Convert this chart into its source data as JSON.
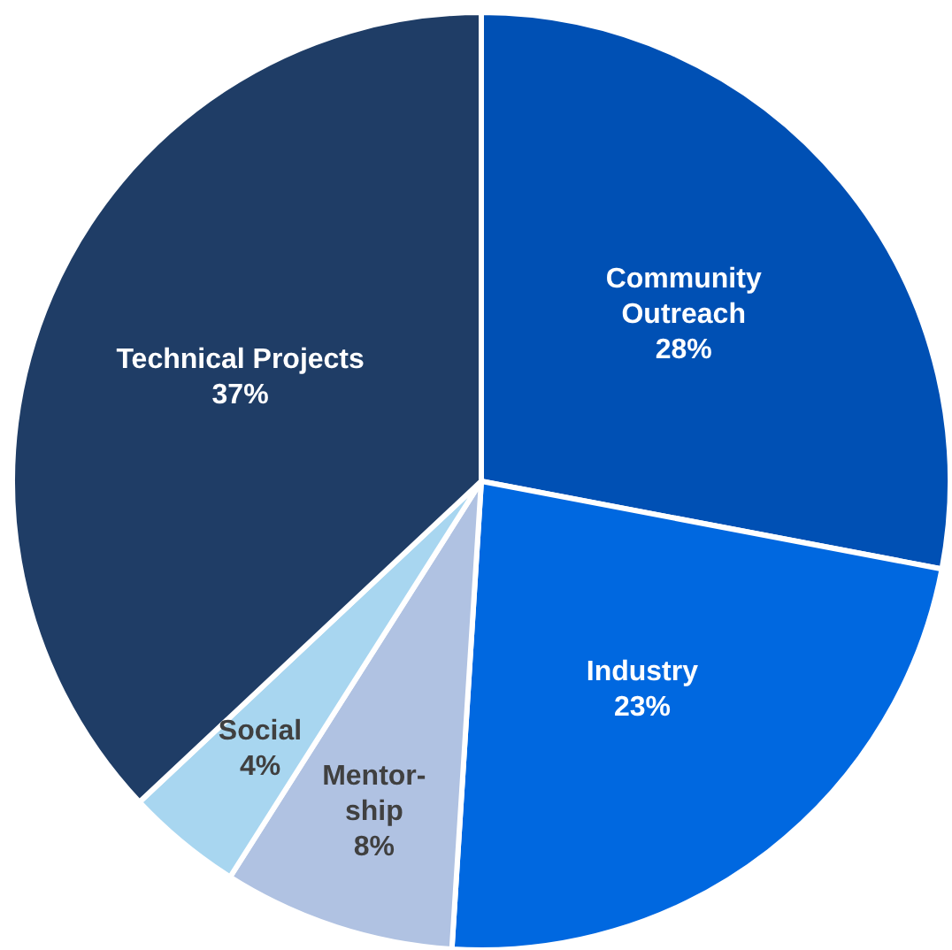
{
  "chart_data": {
    "type": "pie",
    "categories": [
      "Community Outreach",
      "Industry",
      "Mentor-ship",
      "Social",
      "Technical Projects"
    ],
    "values": [
      28,
      23,
      8,
      4,
      37
    ],
    "value_labels": [
      "28%",
      "23%",
      "8%",
      "4%",
      "37%"
    ],
    "colors": [
      "#0050b4",
      "#0068e0",
      "#b0c2e2",
      "#a8d6f0",
      "#1f3d66"
    ],
    "legend": false
  }
}
